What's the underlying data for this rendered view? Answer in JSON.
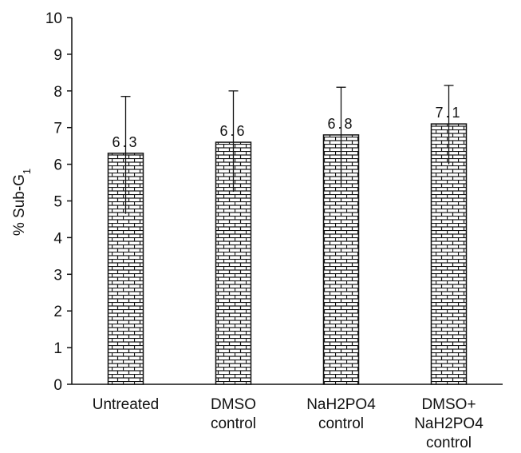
{
  "chart_data": {
    "type": "bar",
    "categories": [
      [
        "Untreated"
      ],
      [
        "DMSO",
        "control"
      ],
      [
        "NaH2PO4",
        "control"
      ],
      [
        "DMSO+",
        "NaH2PO4",
        "control"
      ]
    ],
    "values": [
      6.3,
      6.6,
      6.8,
      7.1
    ],
    "data_labels": [
      "6.3",
      "6.6",
      "6.8",
      "7.1"
    ],
    "error_upper": [
      7.85,
      8.0,
      8.1,
      8.15
    ],
    "error_lower": [
      4.65,
      5.25,
      5.45,
      6.0
    ],
    "ylabel": {
      "prefix": "% Sub-G",
      "subscript": "1"
    },
    "ylim": [
      0,
      10
    ],
    "yticks": [
      0,
      1,
      2,
      3,
      4,
      5,
      6,
      7,
      8,
      9,
      10
    ],
    "bar_pattern": "brick",
    "grid": false
  }
}
